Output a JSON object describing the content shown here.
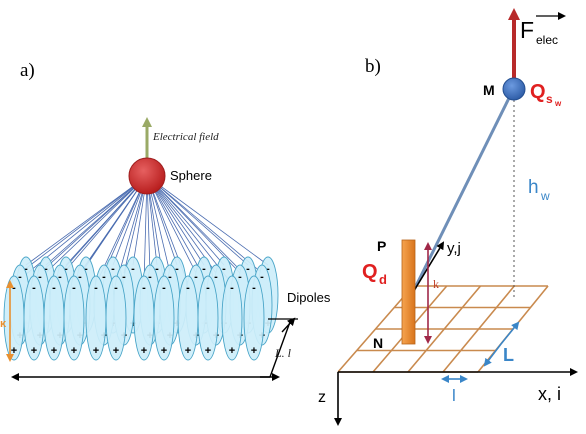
{
  "panel_a": {
    "label": "a)",
    "field_label": "Electrical field",
    "sphere_label": "Sphere",
    "dipoles_label": "Dipoles",
    "length_label": "L. l",
    "kappa_label": "κ",
    "plus_sign": "+",
    "minus_sign": "-"
  },
  "panel_b": {
    "label": "b)",
    "force_label": "F",
    "force_sub": "elec",
    "point_m": "M",
    "charge_sphere": "Q",
    "charge_sphere_sub": "s",
    "charge_sphere_subsub": "w",
    "height_label": "h",
    "height_sub": "w",
    "point_p": "P",
    "yj_label": "y,j",
    "charge_dipole": "Q",
    "charge_dipole_sub": "d",
    "k_label": "k",
    "point_n": "N",
    "big_l": "L",
    "small_l": "l",
    "z_label": "z",
    "xi_label": "x, i"
  },
  "colors": {
    "sphere_red": "#cc2a2a",
    "sphere_blue": "#3d6fc0",
    "field_arrow": "#9aaa66",
    "dipole_fill": "#cdeefa",
    "dipole_stroke": "#4aa5c8",
    "field_lines": "#4a6cb0",
    "grid_orange": "#c98a4e",
    "charge_red": "#e02020",
    "height_blue": "#3a86c8",
    "rod_orange": "#ec8a2a",
    "kappa_orange": "#e89030",
    "k_arrow": "#a02848"
  }
}
